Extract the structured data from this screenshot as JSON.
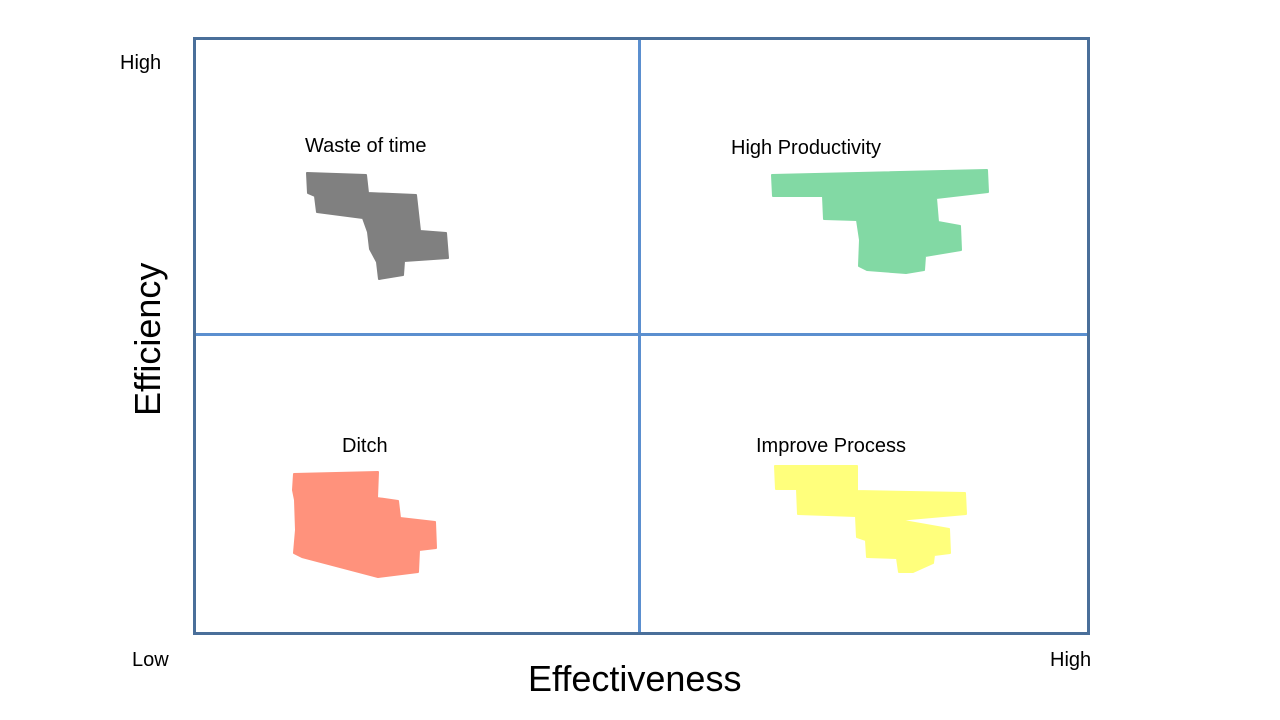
{
  "axes": {
    "x_title": "Effectiveness",
    "y_title": "Efficiency",
    "y_high": "High",
    "origin_low": "Low",
    "x_high": "High"
  },
  "quadrants": [
    {
      "position": "top-left",
      "label": "Waste of time",
      "color": "#808080"
    },
    {
      "position": "top-right",
      "label": "High Productivity",
      "color": "#82d9a4"
    },
    {
      "position": "bottom-left",
      "label": "Ditch",
      "color": "#ff927c"
    },
    {
      "position": "bottom-right",
      "label": "Improve Process",
      "color": "#ffff7c"
    }
  ],
  "colors": {
    "frame": "#4a6f9a",
    "dividers": "#5b8fcf"
  }
}
